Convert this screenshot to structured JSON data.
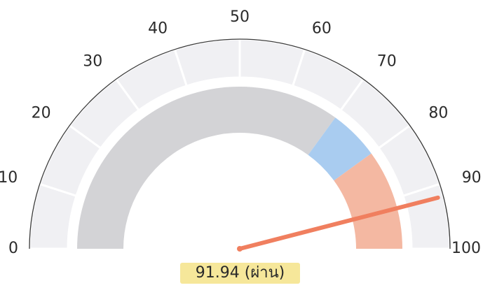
{
  "chart_data": {
    "type": "gauge",
    "min": 0,
    "max": 100,
    "value": 91.94,
    "value_label": "91.94 (ผ่าน)",
    "ticks": [
      {
        "value": 0,
        "label": "0"
      },
      {
        "value": 10,
        "label": "10"
      },
      {
        "value": 20,
        "label": "20"
      },
      {
        "value": 30,
        "label": "30"
      },
      {
        "value": 40,
        "label": "40"
      },
      {
        "value": 50,
        "label": "50"
      },
      {
        "value": 60,
        "label": "60"
      },
      {
        "value": 70,
        "label": "70"
      },
      {
        "value": 80,
        "label": "80"
      },
      {
        "value": 90,
        "label": "90"
      },
      {
        "value": 100,
        "label": "100"
      }
    ],
    "bands": [
      {
        "from": 0,
        "to": 70,
        "color": "#d3d3d6"
      },
      {
        "from": 70,
        "to": 80,
        "color": "#a9ccf0"
      },
      {
        "from": 80,
        "to": 100,
        "color": "#f4b8a2"
      }
    ],
    "outer_track_color": "#f0f0f3",
    "needle_color": "#f07f5f",
    "highlight_color": "#f6e79a"
  }
}
